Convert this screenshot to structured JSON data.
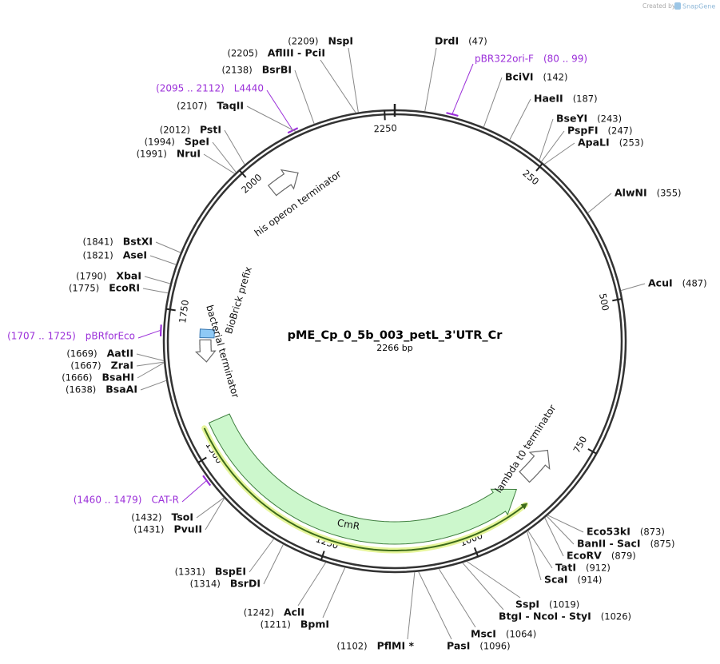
{
  "watermark": {
    "prefix": "Created by",
    "brand": "SnapGene"
  },
  "map": {
    "name": "pME_Cp_0_5b_003_petL_3'UTR_Cr",
    "length": 2266,
    "length_label": "2266 bp",
    "ticks": [
      250,
      500,
      750,
      1000,
      1250,
      1500,
      1750,
      2000,
      2250
    ]
  },
  "features": [
    {
      "name": "CmR"
    },
    {
      "name": "lambda t0 terminator"
    },
    {
      "name": "his operon terminator"
    },
    {
      "name": "bacterial terminator"
    },
    {
      "name": "BioBrick prefix"
    }
  ],
  "primers": [
    {
      "name": "pBR322ori-F",
      "start": 80,
      "end": 99,
      "range_label": "(80 .. 99)"
    },
    {
      "name": "L4440",
      "start": 2095,
      "end": 2112,
      "range_label": "(2095 .. 2112)"
    },
    {
      "name": "pBRforEco",
      "start": 1707,
      "end": 1725,
      "range_label": "(1707 .. 1725)"
    },
    {
      "name": "CAT-R",
      "start": 1460,
      "end": 1479,
      "range_label": "(1460 .. 1479)"
    }
  ],
  "enzymes": [
    {
      "name": "DrdI",
      "site": 47,
      "site_label": "(47)"
    },
    {
      "name": "BciVI",
      "site": 142,
      "site_label": "(142)"
    },
    {
      "name": "HaeII",
      "site": 187,
      "site_label": "(187)"
    },
    {
      "name": "BseYI",
      "site": 243,
      "site_label": "(243)"
    },
    {
      "name": "PspFI",
      "site": 247,
      "site_label": "(247)"
    },
    {
      "name": "ApaLI",
      "site": 253,
      "site_label": "(253)"
    },
    {
      "name": "AlwNI",
      "site": 355,
      "site_label": "(355)"
    },
    {
      "name": "AcuI",
      "site": 487,
      "site_label": "(487)"
    },
    {
      "name": "Eco53kI",
      "site": 873,
      "site_label": "(873)"
    },
    {
      "name": "BanII - SacI",
      "site": 875,
      "site_label": "(875)"
    },
    {
      "name": "EcoRV",
      "site": 879,
      "site_label": "(879)"
    },
    {
      "name": "TatI",
      "site": 912,
      "site_label": "(912)"
    },
    {
      "name": "ScaI",
      "site": 914,
      "site_label": "(914)"
    },
    {
      "name": "SspI",
      "site": 1019,
      "site_label": "(1019)"
    },
    {
      "name": "BtgI - NcoI - StyI",
      "site": 1026,
      "site_label": "(1026)"
    },
    {
      "name": "MscI",
      "site": 1064,
      "site_label": "(1064)"
    },
    {
      "name": "PasI",
      "site": 1096,
      "site_label": "(1096)"
    },
    {
      "name": "PflMI *",
      "site": 1102,
      "site_label": "(1102)"
    },
    {
      "name": "BpmI",
      "site": 1211,
      "site_label": "(1211)"
    },
    {
      "name": "AclI",
      "site": 1242,
      "site_label": "(1242)"
    },
    {
      "name": "BsrDI",
      "site": 1314,
      "site_label": "(1314)"
    },
    {
      "name": "BspEI",
      "site": 1331,
      "site_label": "(1331)"
    },
    {
      "name": "PvuII",
      "site": 1431,
      "site_label": "(1431)"
    },
    {
      "name": "TsoI",
      "site": 1432,
      "site_label": "(1432)"
    },
    {
      "name": "BsaAI",
      "site": 1638,
      "site_label": "(1638)"
    },
    {
      "name": "BsaHI",
      "site": 1666,
      "site_label": "(1666)"
    },
    {
      "name": "ZraI",
      "site": 1667,
      "site_label": "(1667)"
    },
    {
      "name": "AatII",
      "site": 1669,
      "site_label": "(1669)"
    },
    {
      "name": "EcoRI",
      "site": 1775,
      "site_label": "(1775)"
    },
    {
      "name": "XbaI",
      "site": 1790,
      "site_label": "(1790)"
    },
    {
      "name": "AseI",
      "site": 1821,
      "site_label": "(1821)"
    },
    {
      "name": "BstXI",
      "site": 1841,
      "site_label": "(1841)"
    },
    {
      "name": "NruI",
      "site": 1991,
      "site_label": "(1991)"
    },
    {
      "name": "SpeI",
      "site": 1994,
      "site_label": "(1994)"
    },
    {
      "name": "PstI",
      "site": 2012,
      "site_label": "(2012)"
    },
    {
      "name": "TaqII",
      "site": 2107,
      "site_label": "(2107)"
    },
    {
      "name": "BsrBI",
      "site": 2138,
      "site_label": "(2138)"
    },
    {
      "name": "AflIII - PciI",
      "site": 2205,
      "site_label": "(2205)"
    },
    {
      "name": "NspI",
      "site": 2209,
      "site_label": "(2209)"
    }
  ]
}
